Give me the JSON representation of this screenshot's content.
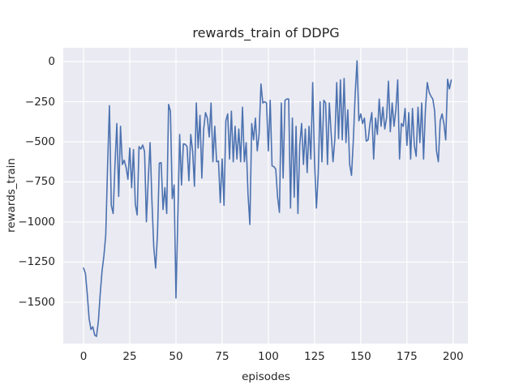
{
  "chart_data": {
    "type": "line",
    "title": "rewards_train of DDPG",
    "xlabel": "episodes",
    "ylabel": "rewards_train",
    "legend": "none",
    "grid": "on",
    "plot_bg_color": "#eaeaf2",
    "grid_color": "#ffffff",
    "line_color": "#4c72b0",
    "text_color": "#262626",
    "x_ticks": [
      0,
      25,
      50,
      75,
      100,
      125,
      150,
      175,
      200
    ],
    "x_tick_labels": [
      "0",
      "25",
      "50",
      "75",
      "100",
      "125",
      "150",
      "175",
      "200"
    ],
    "y_ticks": [
      0,
      -250,
      -500,
      -750,
      -1000,
      -1250,
      -1500
    ],
    "y_tick_labels": [
      "0",
      "−250",
      "−500",
      "−750",
      "−1000",
      "−1250",
      "−1500"
    ],
    "xlim": [
      -11,
      208
    ],
    "ylim": [
      -1758,
      86
    ],
    "series": [
      {
        "name": "rewards_train",
        "x_start": 0,
        "x_step": 1,
        "values": [
          -1287,
          -1321,
          -1449,
          -1602,
          -1670,
          -1653,
          -1704,
          -1713,
          -1619,
          -1449,
          -1305,
          -1211,
          -1080,
          -646,
          -275,
          -896,
          -947,
          -641,
          -386,
          -840,
          -403,
          -641,
          -615,
          -658,
          -734,
          -539,
          -786,
          -548,
          -888,
          -956,
          -530,
          -545,
          -520,
          -560,
          -998,
          -734,
          -505,
          -871,
          -1160,
          -1287,
          -1075,
          -633,
          -630,
          -922,
          -786,
          -947,
          -267,
          -310,
          -854,
          -769,
          -1474,
          -973,
          -454,
          -769,
          -513,
          -515,
          -530,
          -743,
          -454,
          -556,
          -777,
          -258,
          -539,
          -335,
          -726,
          -420,
          -318,
          -352,
          -470,
          -258,
          -624,
          -403,
          -624,
          -620,
          -879,
          -607,
          -896,
          -369,
          -326,
          -607,
          -309,
          -624,
          -403,
          -607,
          -420,
          -624,
          -284,
          -624,
          -505,
          -828,
          -1015,
          -386,
          -488,
          -352,
          -556,
          -450,
          -140,
          -258,
          -250,
          -258,
          -556,
          -241,
          -650,
          -655,
          -670,
          -845,
          -940,
          -258,
          -726,
          -241,
          -233,
          -233,
          -913,
          -352,
          -845,
          -403,
          -947,
          -520,
          -386,
          -641,
          -420,
          -692,
          -403,
          -607,
          -131,
          -624,
          -913,
          -700,
          -250,
          -624,
          -241,
          -258,
          -641,
          -258,
          -450,
          -624,
          -480,
          -131,
          -480,
          -114,
          -488,
          -105,
          -505,
          -301,
          -641,
          -709,
          -488,
          -200,
          5,
          -369,
          -326,
          -386,
          -352,
          -496,
          -488,
          -386,
          -318,
          -607,
          -352,
          -454,
          -233,
          -403,
          -284,
          -420,
          -350,
          -122,
          -437,
          -258,
          -403,
          -301,
          -114,
          -607,
          -386,
          -403,
          -292,
          -522,
          -318,
          -607,
          -292,
          -522,
          -590,
          -284,
          -505,
          -258,
          -607,
          -300,
          -131,
          -190,
          -216,
          -233,
          -309,
          -556,
          -624,
          -369,
          -326,
          -386,
          -488,
          -110,
          -170,
          -115
        ]
      }
    ]
  }
}
